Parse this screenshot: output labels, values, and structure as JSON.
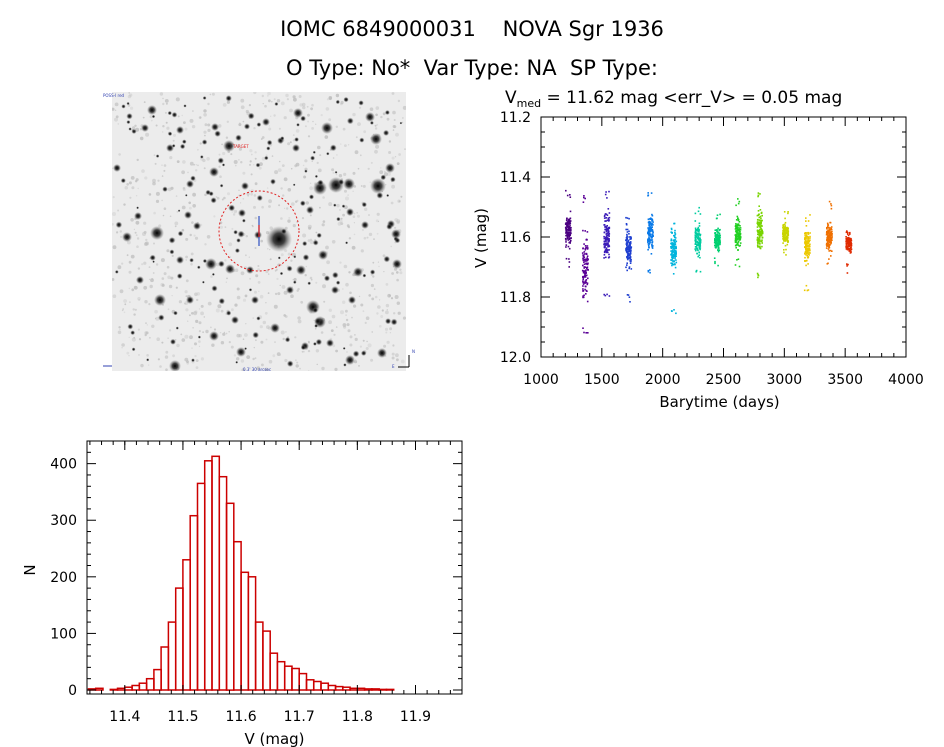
{
  "header": {
    "line1": "IOMC 6849000031    NOVA Sgr 1936",
    "line2": "O Type: No*  Var Type: NA  SP Type:"
  },
  "image_panel": {
    "labels": [
      "POSS-I red",
      "TARGET",
      "N",
      "E",
      "0.3' 30 arcsec"
    ]
  },
  "colors": {
    "hist_bar": "#cc0000",
    "axis": "#000000",
    "marker": "#cc0000"
  },
  "chart_data": [
    {
      "type": "scatter",
      "title_parts": {
        "prefix": "V",
        "sub": "med",
        "rest": " = 11.62 mag <err_V> = 0.05 mag"
      },
      "xlabel": "Barytime (days)",
      "ylabel": "V (mag)",
      "xlim": [
        1000,
        4000
      ],
      "ylim": [
        12.0,
        11.2
      ],
      "xticks": [
        1000,
        1500,
        2000,
        2500,
        3000,
        3500,
        4000
      ],
      "yticks": [
        11.2,
        11.4,
        11.6,
        11.8,
        12.0
      ],
      "clusters": [
        {
          "x": 1225,
          "center": 11.58,
          "min": 11.44,
          "max": 11.7,
          "color": "#4b0082"
        },
        {
          "x": 1365,
          "center": 11.7,
          "min": 11.46,
          "max": 11.93,
          "color": "#5a0096"
        },
        {
          "x": 1540,
          "center": 11.6,
          "min": 11.44,
          "max": 11.8,
          "color": "#3a1bb8"
        },
        {
          "x": 1720,
          "center": 11.64,
          "min": 11.53,
          "max": 11.82,
          "color": "#1f3fd0"
        },
        {
          "x": 1900,
          "center": 11.59,
          "min": 11.45,
          "max": 11.72,
          "color": "#0a7ae8"
        },
        {
          "x": 2090,
          "center": 11.64,
          "min": 11.55,
          "max": 11.86,
          "color": "#00b4dc"
        },
        {
          "x": 2290,
          "center": 11.61,
          "min": 11.5,
          "max": 11.73,
          "color": "#00cca0"
        },
        {
          "x": 2450,
          "center": 11.61,
          "min": 11.51,
          "max": 11.7,
          "color": "#00d070"
        },
        {
          "x": 2620,
          "center": 11.59,
          "min": 11.47,
          "max": 11.7,
          "color": "#22d022"
        },
        {
          "x": 2800,
          "center": 11.58,
          "min": 11.44,
          "max": 11.75,
          "color": "#78d400"
        },
        {
          "x": 3010,
          "center": 11.59,
          "min": 11.51,
          "max": 11.67,
          "color": "#c8d400"
        },
        {
          "x": 3190,
          "center": 11.63,
          "min": 11.52,
          "max": 11.79,
          "color": "#ecc800"
        },
        {
          "x": 3370,
          "center": 11.6,
          "min": 11.48,
          "max": 11.69,
          "color": "#f07000"
        },
        {
          "x": 3530,
          "center": 11.62,
          "min": 11.57,
          "max": 11.72,
          "color": "#e02a00"
        }
      ]
    },
    {
      "type": "bar",
      "xlabel": "V (mag)",
      "ylabel": "N",
      "xlim": [
        11.335,
        11.98
      ],
      "ylim": [
        0,
        440
      ],
      "xticks": [
        11.4,
        11.5,
        11.6,
        11.7,
        11.8,
        11.9
      ],
      "xtick_labels": [
        "11.4",
        "11.5",
        "11.6",
        "11.7",
        "11.8",
        "11.9"
      ],
      "yticks": [
        0,
        100,
        200,
        300,
        400
      ],
      "bin_width": 0.0125,
      "bin_start": 11.3375,
      "counts": [
        2,
        3,
        0,
        1,
        3,
        5,
        8,
        12,
        20,
        36,
        76,
        120,
        180,
        230,
        308,
        365,
        405,
        413,
        377,
        330,
        262,
        208,
        200,
        120,
        104,
        65,
        50,
        42,
        38,
        29,
        18,
        15,
        12,
        8,
        6,
        5,
        3,
        3,
        2,
        2,
        1,
        1
      ]
    }
  ]
}
